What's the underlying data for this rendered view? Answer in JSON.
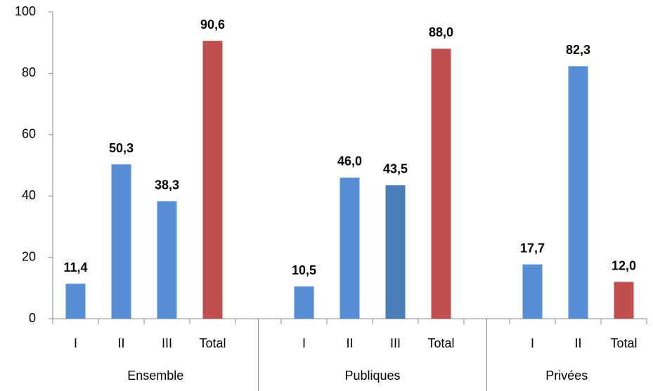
{
  "chart_data": {
    "type": "bar",
    "groups": [
      {
        "name": "Ensemble",
        "categories": [
          "I",
          "II",
          "III",
          "Total"
        ],
        "values": [
          11.4,
          50.3,
          38.3,
          90.6
        ],
        "value_labels": [
          "11,4",
          "50,3",
          "38,3",
          "90,6"
        ],
        "colors": [
          "#558ed5",
          "#558ed5",
          "#558ed5",
          "#c0504d"
        ]
      },
      {
        "name": "Publiques",
        "categories": [
          "I",
          "II",
          "III",
          "Total"
        ],
        "values": [
          10.5,
          46.0,
          43.5,
          88.0
        ],
        "value_labels": [
          "10,5",
          "46,0",
          "43,5",
          "88,0"
        ],
        "colors": [
          "#558ed5",
          "#558ed5",
          "#4a7ebb",
          "#c0504d"
        ]
      },
      {
        "name": "Privées",
        "categories": [
          "I",
          "II",
          "Total"
        ],
        "values": [
          17.7,
          82.3,
          12.0
        ],
        "value_labels": [
          "17,7",
          "82,3",
          "12,0"
        ],
        "colors": [
          "#558ed5",
          "#558ed5",
          "#c0504d"
        ]
      }
    ],
    "ylim": [
      0,
      100
    ],
    "yticks": [
      0,
      20,
      40,
      60,
      80,
      100
    ],
    "grid": false
  }
}
